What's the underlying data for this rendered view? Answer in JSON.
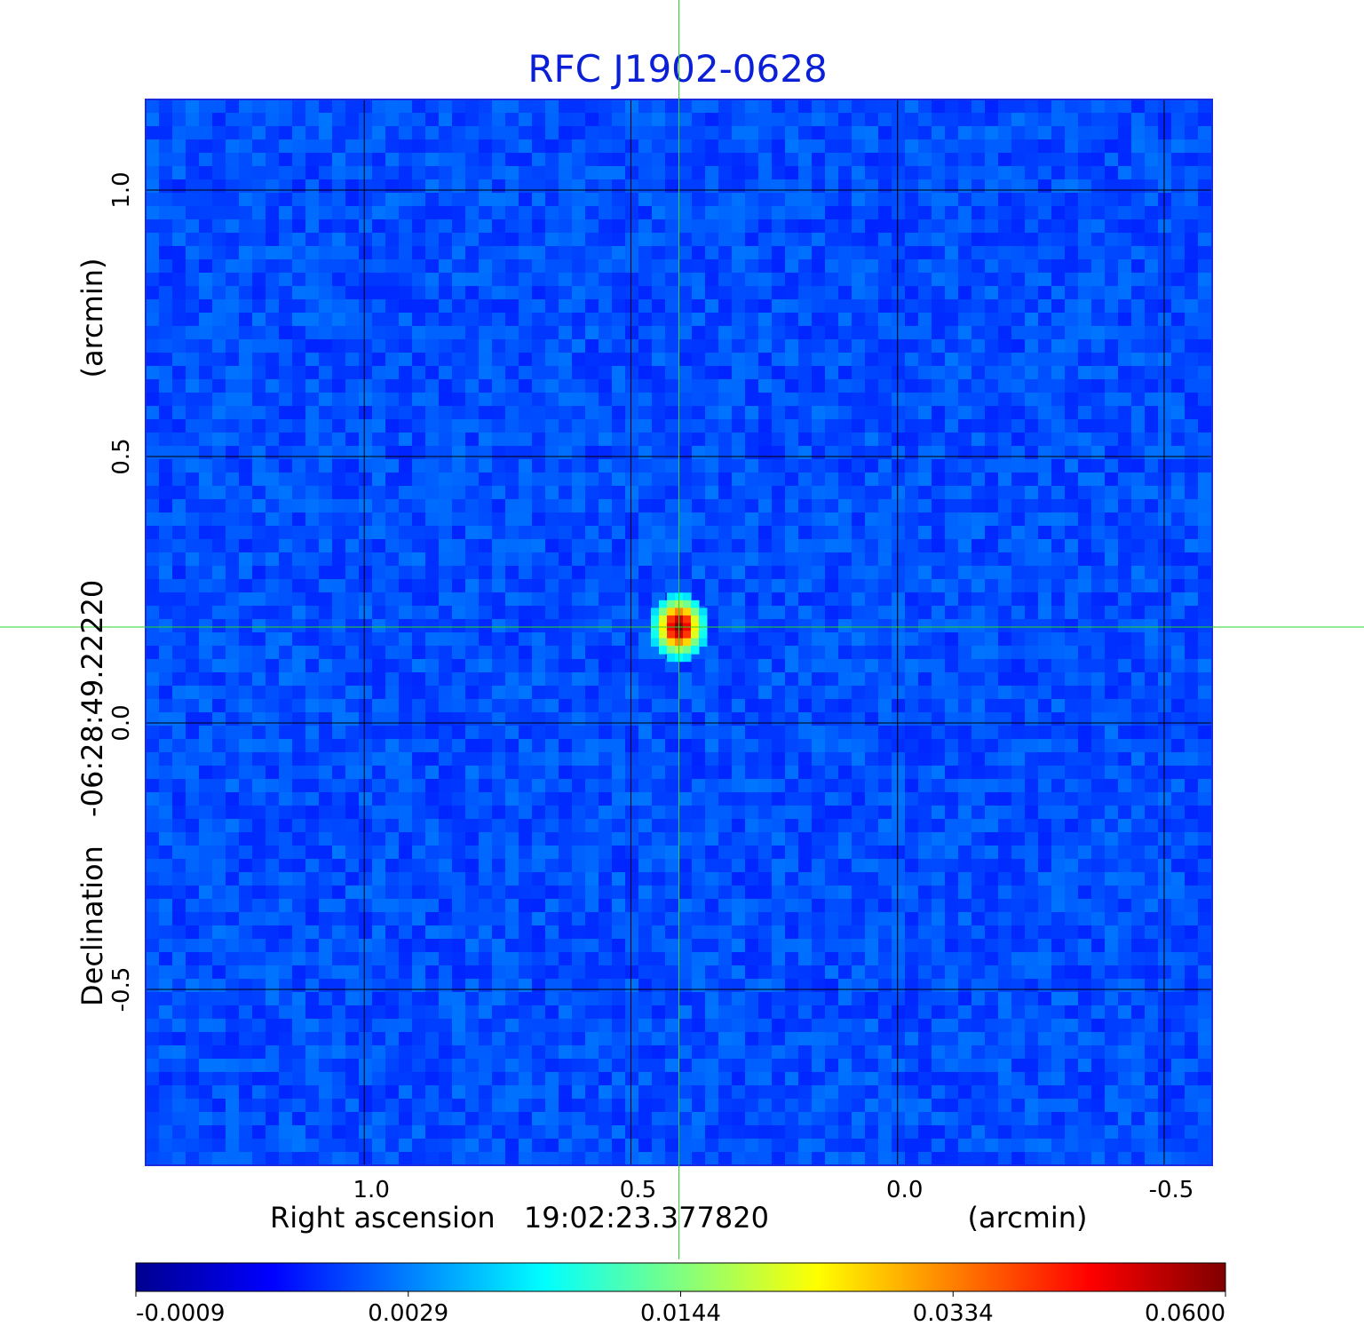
{
  "chart_data": {
    "type": "heatmap",
    "title": "RFC J1902-0628",
    "colors": {
      "title": "#0a1fd6",
      "grid": "#000000",
      "crosshair": "#2bd62b",
      "frame": "#1a2be0",
      "background": "#1e45f5"
    },
    "colormap": "jet",
    "xaxis": {
      "label": "Right ascension",
      "center": "19:02:23.377820",
      "unit": "(arcmin)",
      "ticks": [
        1.0,
        0.5,
        0.0,
        -0.5
      ],
      "tick_labels": [
        "1.0",
        "0.5",
        "0.0",
        "-0.5"
      ],
      "range": [
        1.41,
        -0.59
      ],
      "direction": "reversed"
    },
    "yaxis": {
      "label": "Declination",
      "center": "-06:28:49.22220",
      "unit": "(arcmin)",
      "ticks": [
        1.0,
        0.5,
        0.0,
        -0.5
      ],
      "tick_labels": [
        "1.0",
        "0.5",
        "0.0",
        "-0.5"
      ],
      "range": [
        -0.83,
        1.17
      ]
    },
    "grid": true,
    "source": {
      "ra_offset": 0.41,
      "dec_offset": 0.18,
      "peak": 0.06
    },
    "crosshair": {
      "x": 0.41,
      "y": 0.18
    },
    "colorbar": {
      "orientation": "horizontal",
      "placement": "bottom",
      "ticks": [
        "-0.0009",
        "0.0029",
        "0.0144",
        "0.0334",
        "0.0600"
      ]
    }
  }
}
